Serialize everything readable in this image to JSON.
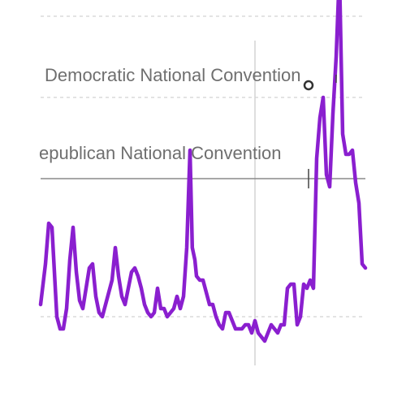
{
  "chart_data": {
    "type": "line",
    "title": "",
    "xlabel": "",
    "ylabel": "",
    "grid": true,
    "legend": "none",
    "ylim": [
      0,
      100
    ],
    "xlim": [
      0,
      100
    ],
    "reference_line_y": 54,
    "highlight_x": 66,
    "series": [
      {
        "color": "#8a1fcf",
        "x": [
          0,
          1.5,
          2.5,
          3.5,
          5,
          6,
          7,
          8,
          9,
          10,
          11,
          12,
          13,
          14,
          15,
          16,
          17,
          18,
          19,
          20,
          21,
          22,
          23,
          24,
          25,
          26,
          27,
          28,
          29,
          30,
          31,
          32,
          33,
          34,
          35,
          36,
          37,
          38,
          39,
          40,
          41,
          42,
          43,
          44,
          45,
          46,
          46.7,
          47.5,
          48,
          49,
          50,
          51,
          52,
          53,
          54,
          55,
          56,
          57,
          58,
          59,
          60,
          61,
          62,
          63,
          64,
          65,
          66,
          67,
          68,
          69,
          70,
          71,
          72,
          73,
          74,
          75,
          76,
          77,
          78,
          79,
          80,
          81,
          82,
          83,
          84,
          85,
          86,
          87,
          88,
          89,
          90,
          91,
          92,
          93,
          94,
          95,
          96,
          97,
          98,
          99,
          100
        ],
        "y": [
          23,
          33,
          43,
          42,
          20,
          17,
          17,
          22,
          34,
          42,
          31,
          24,
          22,
          27,
          32,
          33,
          25,
          21,
          20,
          23,
          26,
          29,
          37,
          30,
          25,
          23,
          27,
          31,
          32,
          30,
          27,
          23,
          21,
          20,
          21,
          27,
          22,
          22,
          20,
          21,
          22,
          25,
          22,
          25,
          37,
          61,
          37,
          34,
          30,
          29,
          29,
          26,
          23,
          23,
          20,
          18,
          17,
          21,
          21,
          19,
          17,
          17,
          17,
          18,
          18,
          16,
          19,
          16,
          15,
          14,
          16,
          18,
          17,
          16,
          18,
          18,
          27,
          28,
          28,
          18,
          20,
          28,
          27,
          29,
          27,
          59,
          69,
          74,
          55,
          52,
          70,
          84,
          105,
          65,
          60,
          60,
          61,
          53,
          48,
          33,
          32
        ]
      }
    ],
    "annotations": [
      {
        "text": "Democratic National Convention",
        "x": 91,
        "y": 105
      },
      {
        "text": "epublican National Convention",
        "x": 82.5,
        "y": 77
      }
    ]
  }
}
